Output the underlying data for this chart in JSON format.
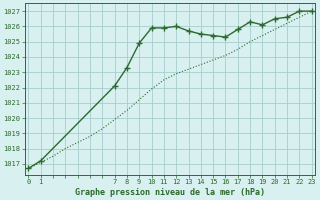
{
  "line_main_x": [
    0,
    1,
    7,
    8,
    9,
    10,
    11,
    12,
    13,
    14,
    15,
    16,
    17,
    18,
    19,
    20,
    21,
    22,
    23
  ],
  "line_main_y": [
    1016.7,
    1017.2,
    1022.1,
    1023.3,
    1024.9,
    1025.9,
    1025.9,
    1026.0,
    1025.7,
    1025.5,
    1025.4,
    1025.3,
    1025.8,
    1026.3,
    1026.1,
    1026.5,
    1026.6,
    1027.0,
    1027.0
  ],
  "line_dot_x": [
    0,
    1,
    2,
    3,
    4,
    5,
    6,
    7,
    8,
    9,
    10,
    11,
    12,
    13,
    14,
    15,
    16,
    17,
    18,
    19,
    20,
    21,
    22,
    23
  ],
  "line_dot_y": [
    1016.7,
    1017.1,
    1017.5,
    1018.0,
    1018.4,
    1018.8,
    1019.3,
    1019.9,
    1020.5,
    1021.2,
    1021.9,
    1022.5,
    1022.9,
    1023.2,
    1023.5,
    1023.8,
    1024.1,
    1024.5,
    1025.0,
    1025.4,
    1025.8,
    1026.2,
    1026.6,
    1027.0
  ],
  "line_color": "#2d6a2d",
  "bg_color": "#d8f0f0",
  "grid_color": "#a8cece",
  "xlabel": "Graphe pression niveau de la mer (hPa)",
  "xtick_labels": [
    "0",
    "1",
    "",
    "",
    "",
    "",
    "",
    "7",
    "8",
    "9",
    "10",
    "11",
    "12",
    "13",
    "14",
    "15",
    "16",
    "17",
    "18",
    "19",
    "20",
    "21",
    "22",
    "23"
  ],
  "xtick_positions": [
    0,
    1,
    2,
    3,
    4,
    5,
    6,
    7,
    8,
    9,
    10,
    11,
    12,
    13,
    14,
    15,
    16,
    17,
    18,
    19,
    20,
    21,
    22,
    23
  ],
  "yticks": [
    1017,
    1018,
    1019,
    1020,
    1021,
    1022,
    1023,
    1024,
    1025,
    1026,
    1027
  ],
  "ylim": [
    1016.3,
    1027.5
  ],
  "xlim": [
    -0.3,
    23.3
  ],
  "markersize": 4,
  "linewidth_main": 1.0,
  "linewidth_dot": 0.8
}
